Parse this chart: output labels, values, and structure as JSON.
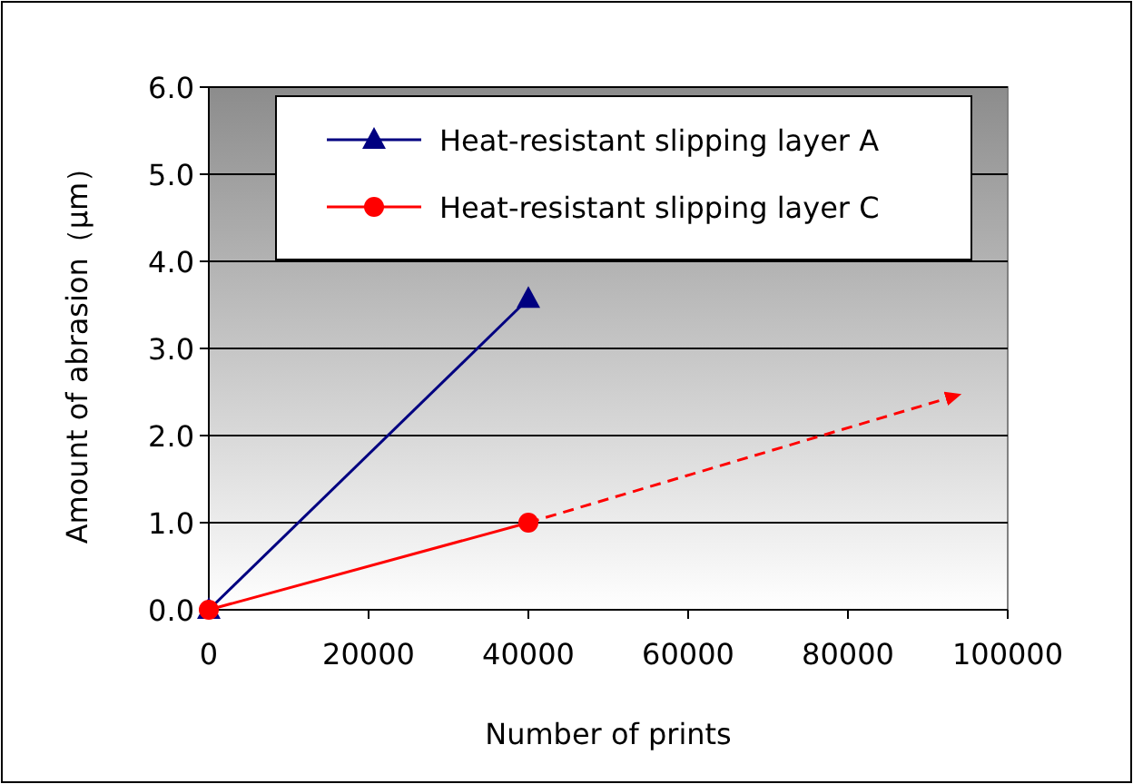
{
  "chart_data": {
    "type": "line",
    "xlabel": "Number of prints",
    "ylabel": "Amount of abrasion（μm）",
    "xlim": [
      0,
      100000
    ],
    "xticks": [
      0,
      20000,
      40000,
      60000,
      80000,
      100000
    ],
    "ylim": [
      0,
      6
    ],
    "yticks": [
      {
        "value": 0,
        "label": "0.0"
      },
      {
        "value": 1,
        "label": "1.0"
      },
      {
        "value": 2,
        "label": "2.0"
      },
      {
        "value": 3,
        "label": "3.0"
      },
      {
        "value": 4,
        "label": "4.0"
      },
      {
        "value": 5,
        "label": "5.0"
      },
      {
        "value": 6,
        "label": "6.0"
      }
    ],
    "grid": "y",
    "legend": "top",
    "series": [
      {
        "name": "Heat-resistant slipping layer A",
        "color": "#000080",
        "x": [
          0,
          40000
        ],
        "values": [
          0,
          3.57
        ],
        "marker": "triangle",
        "line_style": "solid"
      },
      {
        "name": "Heat-resistant slipping layer C",
        "color": "#ff0000",
        "x": [
          0,
          40000
        ],
        "values": [
          0,
          1.0
        ],
        "marker": "circle",
        "line_style": "solid"
      },
      {
        "color": "#ff0000",
        "x": [
          40000,
          94000
        ],
        "values": [
          1.0,
          2.47
        ],
        "marker": "none",
        "line_style": "dashed"
      }
    ]
  }
}
